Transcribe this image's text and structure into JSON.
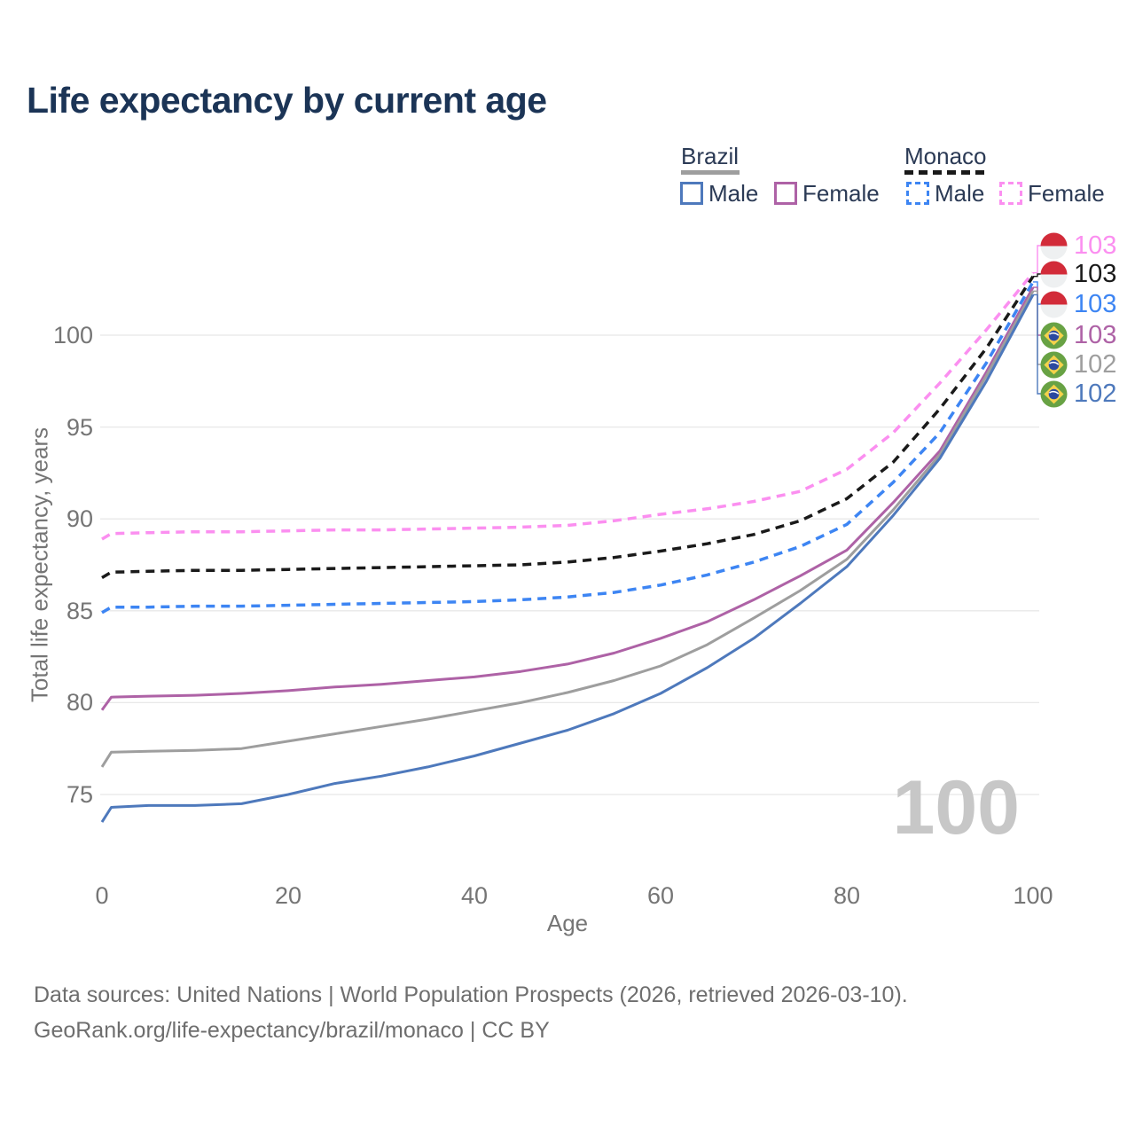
{
  "title": "Life expectancy by current age",
  "legend": {
    "groups": [
      {
        "label": "Brazil",
        "line_style": "solid",
        "color": "#9e9e9e",
        "items": [
          {
            "label": "Male",
            "color": "#4e79bc",
            "dashed": false
          },
          {
            "label": "Female",
            "color": "#ae62a6",
            "dashed": false
          }
        ]
      },
      {
        "label": "Monaco",
        "line_style": "dashed",
        "color": "#1a1a1a",
        "items": [
          {
            "label": "Male",
            "color": "#3d85f3",
            "dashed": true
          },
          {
            "label": "Female",
            "color": "#fb8ff0",
            "dashed": true
          }
        ]
      }
    ]
  },
  "watermark": "100",
  "footer": {
    "line1": "Data sources: United Nations | World Population Prospects (2026, retrieved 2026-03-10).",
    "line2": "GeoRank.org/life-expectancy/brazil/monaco | CC BY"
  },
  "chart_data": {
    "type": "line",
    "title": "Life expectancy by current age",
    "xlabel": "Age",
    "ylabel": "Total life expectancy, years",
    "xlim": [
      0,
      100
    ],
    "ylim": [
      72,
      104
    ],
    "xticks": [
      0,
      20,
      40,
      60,
      80,
      100
    ],
    "yticks": [
      75,
      80,
      85,
      90,
      95,
      100
    ],
    "grid": "horizontal gridlines only, light gray",
    "legend_position": "top-right",
    "x": [
      0,
      1,
      5,
      10,
      15,
      20,
      25,
      30,
      35,
      40,
      45,
      50,
      55,
      60,
      65,
      70,
      75,
      80,
      85,
      90,
      95,
      100
    ],
    "series": [
      {
        "name": "Monaco Female",
        "country": "Monaco",
        "color": "#fb8ff0",
        "dashed": true,
        "end_label": "103",
        "values": [
          88.9,
          89.2,
          89.25,
          89.3,
          89.3,
          89.35,
          89.4,
          89.4,
          89.45,
          89.5,
          89.55,
          89.65,
          89.9,
          90.25,
          90.55,
          90.95,
          91.5,
          92.7,
          94.7,
          97.4,
          100.3,
          103.4
        ]
      },
      {
        "name": "Monaco (all)",
        "country": "Monaco",
        "color": "#1a1a1a",
        "dashed": true,
        "end_label": "103",
        "values": [
          86.8,
          87.1,
          87.15,
          87.2,
          87.2,
          87.25,
          87.3,
          87.35,
          87.4,
          87.45,
          87.5,
          87.65,
          87.9,
          88.25,
          88.65,
          89.15,
          89.9,
          91.1,
          93.1,
          96.0,
          99.3,
          103.2
        ]
      },
      {
        "name": "Monaco Male",
        "country": "Monaco",
        "color": "#3d85f3",
        "dashed": true,
        "end_label": "103",
        "values": [
          84.9,
          85.2,
          85.2,
          85.25,
          85.25,
          85.3,
          85.35,
          85.4,
          85.45,
          85.5,
          85.6,
          85.75,
          86.0,
          86.4,
          86.95,
          87.65,
          88.5,
          89.7,
          92.0,
          94.7,
          98.5,
          102.9
        ]
      },
      {
        "name": "Brazil Female",
        "country": "Brazil",
        "color": "#ae62a6",
        "dashed": false,
        "end_label": "103",
        "values": [
          79.6,
          80.3,
          80.35,
          80.4,
          80.5,
          80.65,
          80.85,
          81.0,
          81.2,
          81.4,
          81.7,
          82.1,
          82.7,
          83.5,
          84.4,
          85.6,
          86.9,
          88.3,
          90.9,
          93.7,
          98.0,
          102.6
        ]
      },
      {
        "name": "Brazil (all)",
        "country": "Brazil",
        "color": "#9e9e9e",
        "dashed": false,
        "end_label": "102",
        "values": [
          76.5,
          77.3,
          77.35,
          77.4,
          77.5,
          77.9,
          78.3,
          78.7,
          79.1,
          79.55,
          80.0,
          80.55,
          81.2,
          82.0,
          83.15,
          84.6,
          86.1,
          87.8,
          90.5,
          93.5,
          97.8,
          102.4
        ]
      },
      {
        "name": "Brazil Male",
        "country": "Brazil",
        "color": "#4e79bc",
        "dashed": false,
        "end_label": "102",
        "values": [
          73.5,
          74.3,
          74.4,
          74.4,
          74.5,
          75.0,
          75.6,
          76.0,
          76.5,
          77.1,
          77.8,
          78.5,
          79.4,
          80.5,
          81.9,
          83.5,
          85.4,
          87.4,
          90.2,
          93.3,
          97.5,
          102.2
        ]
      }
    ]
  }
}
